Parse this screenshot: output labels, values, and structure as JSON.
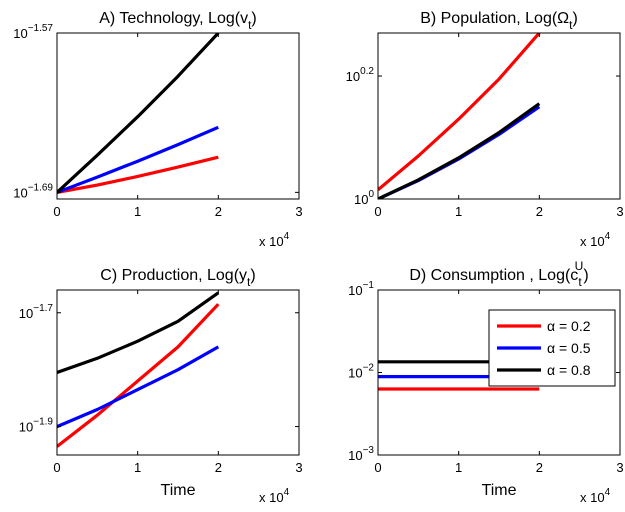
{
  "x_multiplier": {
    "base": "x 10",
    "exp": "4"
  },
  "colors": {
    "alpha_0_2": "#ff0000",
    "alpha_0_5": "#0000ff",
    "alpha_0_8": "#000000"
  },
  "chart_data": [
    {
      "type": "line",
      "title": "A) Technology, Log(v",
      "title_sub": "t",
      "title_end": ")",
      "xlabel": "",
      "x_ticks": [
        "0",
        "1",
        "2",
        "3"
      ],
      "xlim": [
        0,
        30000
      ],
      "y_scale": "log",
      "y_ticks": [
        {
          "base": "10",
          "exp": "−1.69",
          "log10": -1.69
        },
        {
          "base": "10",
          "exp": "−1.57",
          "log10": -1.57
        }
      ],
      "ylim_log10": [
        -1.695,
        -1.57
      ],
      "grid": false,
      "series": [
        {
          "color": "#ff0000",
          "x": [
            0,
            5000,
            10000,
            15000,
            20000
          ],
          "log10_y": [
            -1.69,
            -1.6845,
            -1.678,
            -1.671,
            -1.6635
          ]
        },
        {
          "color": "#0000ff",
          "x": [
            0,
            5000,
            10000,
            15000,
            20000
          ],
          "log10_y": [
            -1.69,
            -1.6785,
            -1.6665,
            -1.654,
            -1.641
          ]
        },
        {
          "color": "#000000",
          "x": [
            0,
            5000,
            10000,
            15000,
            20000
          ],
          "log10_y": [
            -1.69,
            -1.662,
            -1.633,
            -1.6025,
            -1.57
          ]
        }
      ]
    },
    {
      "type": "line",
      "title": "B) Population, Log(Ω",
      "title_sub": "t",
      "title_end": ")",
      "xlabel": "",
      "x_ticks": [
        "0",
        "1",
        "2",
        "3"
      ],
      "xlim": [
        0,
        30000
      ],
      "y_scale": "log",
      "y_ticks": [
        {
          "base": "10",
          "exp": "0",
          "log10": 0
        },
        {
          "base": "10",
          "exp": "0.2",
          "log10": 0.2
        }
      ],
      "ylim_log10": [
        0,
        0.27
      ],
      "grid": false,
      "series": [
        {
          "color": "#ff0000",
          "x": [
            0,
            5000,
            10000,
            15000,
            20000
          ],
          "log10_y": [
            0.015,
            0.07,
            0.13,
            0.195,
            0.27
          ]
        },
        {
          "color": "#0000ff",
          "x": [
            0,
            5000,
            10000,
            15000,
            20000
          ],
          "log10_y": [
            0.0,
            0.03,
            0.065,
            0.105,
            0.15
          ]
        },
        {
          "color": "#000000",
          "x": [
            0,
            5000,
            10000,
            15000,
            20000
          ],
          "log10_y": [
            0.0,
            0.031,
            0.067,
            0.108,
            0.155
          ]
        }
      ]
    },
    {
      "type": "line",
      "title": "C) Production, Log(y",
      "title_sub": "t",
      "title_end": ")",
      "xlabel": "Time",
      "x_ticks": [
        "0",
        "1",
        "2",
        "3"
      ],
      "xlim": [
        0,
        30000
      ],
      "y_scale": "log",
      "y_ticks": [
        {
          "base": "10",
          "exp": "−1.9",
          "log10": -1.9
        },
        {
          "base": "10",
          "exp": "−1.7",
          "log10": -1.7
        }
      ],
      "ylim_log10": [
        -1.95,
        -1.66
      ],
      "grid": false,
      "series": [
        {
          "color": "#ff0000",
          "x": [
            0,
            5000,
            10000,
            15000,
            20000
          ],
          "log10_y": [
            -1.935,
            -1.88,
            -1.82,
            -1.76,
            -1.685
          ]
        },
        {
          "color": "#0000ff",
          "x": [
            0,
            5000,
            10000,
            15000,
            20000
          ],
          "log10_y": [
            -1.9,
            -1.87,
            -1.835,
            -1.8,
            -1.76
          ]
        },
        {
          "color": "#000000",
          "x": [
            0,
            5000,
            10000,
            15000,
            20000
          ],
          "log10_y": [
            -1.805,
            -1.78,
            -1.75,
            -1.715,
            -1.665
          ]
        }
      ]
    },
    {
      "type": "line",
      "title": "D) Consumption , Log(c",
      "title_sub": "t",
      "title_sup": "U",
      "title_end": ")",
      "xlabel": "Time",
      "x_ticks": [
        "0",
        "1",
        "2",
        "3"
      ],
      "xlim": [
        0,
        30000
      ],
      "y_scale": "log",
      "y_ticks": [
        {
          "base": "10",
          "exp": "−1",
          "log10": -1
        },
        {
          "base": "10",
          "exp": "−2",
          "log10": -2
        },
        {
          "base": "10",
          "exp": "−3",
          "log10": -3
        }
      ],
      "ylim_log10": [
        -3,
        -1
      ],
      "grid": false,
      "legend_position": "top-right",
      "series": [
        {
          "name": "α = 0.2",
          "color": "#ff0000",
          "x": [
            0,
            20000
          ],
          "log10_y": [
            -2.2,
            -2.2
          ]
        },
        {
          "name": "α = 0.5",
          "color": "#0000ff",
          "x": [
            0,
            20000
          ],
          "log10_y": [
            -2.05,
            -2.05
          ]
        },
        {
          "name": "α = 0.8",
          "color": "#000000",
          "x": [
            0,
            20000
          ],
          "log10_y": [
            -1.87,
            -1.87
          ]
        }
      ]
    }
  ]
}
